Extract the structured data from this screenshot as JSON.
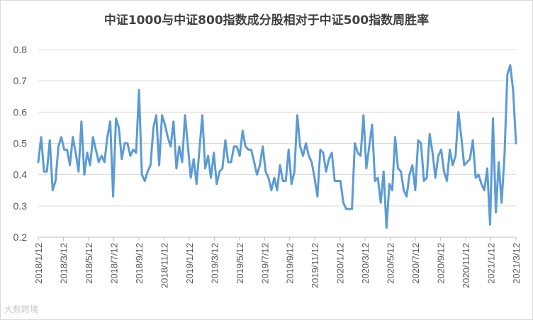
{
  "title": "中证1000与中证800指数成分股相对于中证500指数周胜率",
  "watermark": "大数跨境",
  "colors": {
    "line": "#5b9bd5",
    "grid": "#d9d9d9",
    "axis": "#bfbfbf",
    "text": "#595959"
  },
  "chart_data": {
    "type": "line",
    "title": "中证1000与中证800指数成分股相对于中证500指数周胜率",
    "xlabel": "",
    "ylabel": "",
    "ylim": [
      0.2,
      0.8
    ],
    "yticks": [
      "0.8",
      "0.7",
      "0.6",
      "0.5",
      "0.4",
      "0.3",
      "0.2"
    ],
    "xticks": [
      "2018/1/12",
      "2018/3/12",
      "2018/5/12",
      "2018/7/12",
      "2018/9/12",
      "2018/11/12",
      "2019/1/12",
      "2019/3/12",
      "2019/5/12",
      "2019/7/12",
      "2019/9/12",
      "2019/11/12",
      "2020/1/12",
      "2020/3/12",
      "2020/5/12",
      "2020/7/12",
      "2020/9/12",
      "2020/11/12",
      "2021/1/12",
      "2021/3/12"
    ],
    "grid": true,
    "legend": "none",
    "series": [
      {
        "values": [
          0.44,
          0.52,
          0.41,
          0.41,
          0.51,
          0.35,
          0.38,
          0.49,
          0.52,
          0.48,
          0.48,
          0.43,
          0.52,
          0.47,
          0.41,
          0.57,
          0.4,
          0.47,
          0.43,
          0.52,
          0.48,
          0.44,
          0.46,
          0.44,
          0.52,
          0.57,
          0.33,
          0.58,
          0.55,
          0.45,
          0.5,
          0.5,
          0.46,
          0.48,
          0.47,
          0.67,
          0.4,
          0.38,
          0.41,
          0.43,
          0.55,
          0.59,
          0.43,
          0.59,
          0.56,
          0.52,
          0.49,
          0.57,
          0.42,
          0.49,
          0.44,
          0.59,
          0.49,
          0.39,
          0.45,
          0.37,
          0.48,
          0.59,
          0.42,
          0.46,
          0.39,
          0.47,
          0.37,
          0.41,
          0.42,
          0.51,
          0.44,
          0.44,
          0.49,
          0.49,
          0.46,
          0.54,
          0.49,
          0.48,
          0.48,
          0.44,
          0.4,
          0.43,
          0.49,
          0.41,
          0.39,
          0.35,
          0.39,
          0.35,
          0.43,
          0.38,
          0.38,
          0.48,
          0.37,
          0.41,
          0.59,
          0.49,
          0.46,
          0.5,
          0.46,
          0.44,
          0.39,
          0.33,
          0.48,
          0.47,
          0.41,
          0.45,
          0.47,
          0.38,
          0.38,
          0.38,
          0.31,
          0.29,
          0.29,
          0.29,
          0.5,
          0.47,
          0.46,
          0.59,
          0.42,
          0.49,
          0.56,
          0.38,
          0.39,
          0.31,
          0.41,
          0.23,
          0.37,
          0.35,
          0.52,
          0.42,
          0.41,
          0.35,
          0.33,
          0.4,
          0.43,
          0.35,
          0.51,
          0.5,
          0.38,
          0.39,
          0.53,
          0.47,
          0.39,
          0.46,
          0.48,
          0.41,
          0.38,
          0.48,
          0.43,
          0.46,
          0.6,
          0.52,
          0.43,
          0.44,
          0.45,
          0.51,
          0.39,
          0.4,
          0.37,
          0.35,
          0.42,
          0.24,
          0.58,
          0.28,
          0.44,
          0.31,
          0.46,
          0.72,
          0.75,
          0.67,
          0.5
        ]
      }
    ]
  }
}
